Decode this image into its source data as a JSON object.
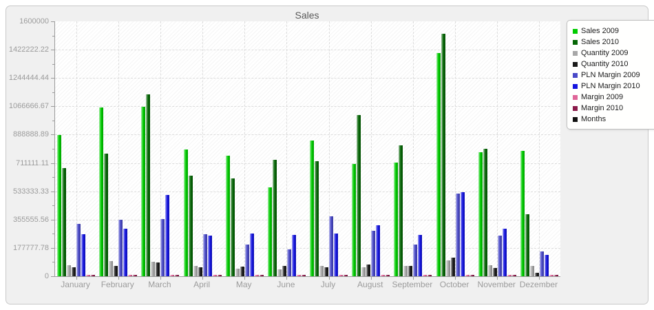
{
  "chart_data": {
    "type": "bar",
    "title": "Sales",
    "categories": [
      "January",
      "February",
      "March",
      "April",
      "May",
      "June",
      "July",
      "August",
      "September",
      "October",
      "November",
      "Dezember"
    ],
    "series": [
      {
        "name": "Sales 2009",
        "color": "#00cc00",
        "values": [
          885000,
          1060000,
          1065000,
          795000,
          755000,
          558000,
          850000,
          705000,
          715000,
          1400000,
          780000,
          785000
        ]
      },
      {
        "name": "Sales 2010",
        "color": "#056605",
        "values": [
          680000,
          770000,
          1140000,
          630000,
          615000,
          730000,
          720000,
          1010000,
          820000,
          1520000,
          800000,
          390000
        ]
      },
      {
        "name": "Quantity 2009",
        "color": "#a8a8a8",
        "values": [
          70000,
          97000,
          90000,
          66000,
          48000,
          44000,
          66000,
          58000,
          67000,
          100000,
          70000,
          67000
        ]
      },
      {
        "name": "Quantity 2010",
        "color": "#1a1a1a",
        "values": [
          55000,
          65000,
          87000,
          57000,
          60000,
          66000,
          58000,
          73000,
          63000,
          115000,
          51000,
          20000
        ]
      },
      {
        "name": "PLN Margin 2009",
        "color": "#4a4ac8",
        "values": [
          327000,
          355000,
          360000,
          265000,
          200000,
          167000,
          377000,
          287000,
          200000,
          517000,
          253000,
          157000
        ]
      },
      {
        "name": "PLN Margin 2010",
        "color": "#1414e0",
        "values": [
          265000,
          300000,
          510000,
          255000,
          268000,
          258000,
          270000,
          318000,
          260000,
          529000,
          297000,
          135000
        ]
      },
      {
        "name": "Margin 2009",
        "color": "#e06699",
        "values": [
          8000,
          8000,
          8000,
          8000,
          8000,
          8000,
          8000,
          8000,
          8000,
          10000,
          8000,
          8000
        ]
      },
      {
        "name": "Margin 2010",
        "color": "#8b1a4a",
        "values": [
          6000,
          6000,
          6000,
          6000,
          6000,
          6000,
          6000,
          6000,
          6000,
          8000,
          6000,
          6000
        ]
      },
      {
        "name": "Months",
        "color": "#111111",
        "values": null
      }
    ],
    "y_ticks": [
      "1600000",
      "1422222.22",
      "1244444.44",
      "1066666.67",
      "888888.89",
      "711111.11",
      "533333.33",
      "355555.56",
      "177777.78",
      "0"
    ],
    "ylim": [
      0,
      1600000
    ],
    "grid": "dashed",
    "legend_position": "right",
    "plot_background": "#ffffff",
    "panel_background": "#f0f0f0"
  }
}
